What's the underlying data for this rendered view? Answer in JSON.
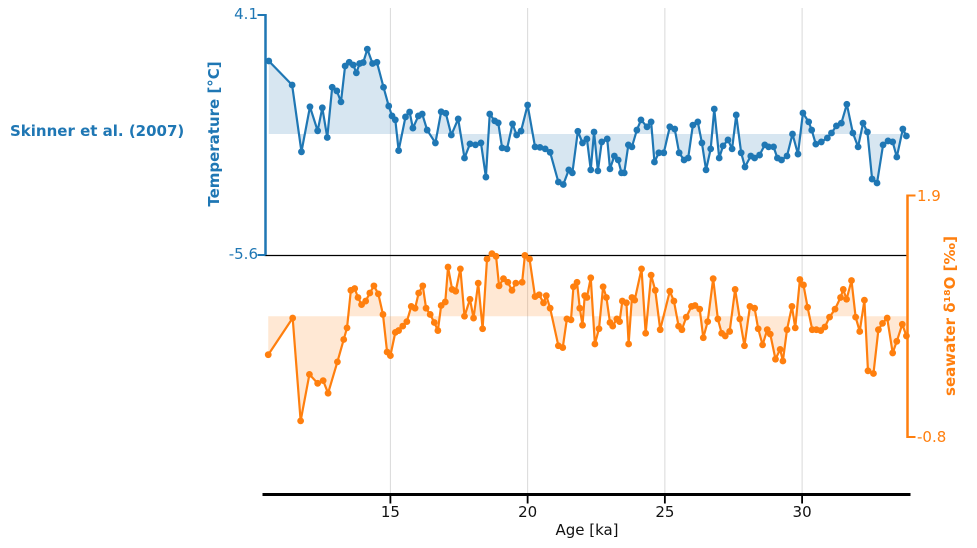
{
  "figure": {
    "annotation": "Skinner et al. (2007)",
    "background": "#ffffff",
    "grid_color": "#d9d9d9",
    "axis_color": "#000000"
  },
  "chart_data": {
    "type": "line",
    "title": "",
    "legend": "none",
    "grid": "vertical-only",
    "x": {
      "label": "Age [ka]",
      "min": 10.45,
      "max": 33.84,
      "ticks": [
        "15",
        "20",
        "25",
        "30"
      ],
      "tick_values": [
        15,
        20,
        25,
        30
      ]
    },
    "series": [
      {
        "name": "temperature",
        "label": "Temperature [°C]",
        "axis_side": "left",
        "color": "#1f77b4",
        "fill_color": "rgba(31,119,180,0.18)",
        "ymax": 4.1,
        "ymin": -5.6,
        "ymax_label": "4.1",
        "ymin_label": "-5.6",
        "fill_baseline": -0.71,
        "marker": "circle",
        "points": [
          [
            10.57,
            2.24
          ],
          [
            11.42,
            1.27
          ],
          [
            11.76,
            -1.43
          ],
          [
            12.07,
            0.39
          ],
          [
            12.35,
            -0.58
          ],
          [
            12.52,
            0.35
          ],
          [
            12.7,
            -0.85
          ],
          [
            12.88,
            1.18
          ],
          [
            13.05,
            1.03
          ],
          [
            13.2,
            0.59
          ],
          [
            13.35,
            2.04
          ],
          [
            13.5,
            2.19
          ],
          [
            13.65,
            2.08
          ],
          [
            13.76,
            1.76
          ],
          [
            13.88,
            2.14
          ],
          [
            14.01,
            2.18
          ],
          [
            14.16,
            2.72
          ],
          [
            14.35,
            2.14
          ],
          [
            14.51,
            2.19
          ],
          [
            14.75,
            1.18
          ],
          [
            14.94,
            0.42
          ],
          [
            15.06,
            0.02
          ],
          [
            15.18,
            -0.14
          ],
          [
            15.3,
            -1.38
          ],
          [
            15.55,
            -0.02
          ],
          [
            15.7,
            0.18
          ],
          [
            15.82,
            -0.47
          ],
          [
            16.02,
            0.02
          ],
          [
            16.16,
            0.1
          ],
          [
            16.34,
            -0.55
          ],
          [
            16.64,
            -1.07
          ],
          [
            16.85,
            0.19
          ],
          [
            17.02,
            0.13
          ],
          [
            17.22,
            -0.75
          ],
          [
            17.47,
            -0.1
          ],
          [
            17.7,
            -1.68
          ],
          [
            17.9,
            -1.11
          ],
          [
            18.1,
            -1.15
          ],
          [
            18.3,
            -1.07
          ],
          [
            18.48,
            -2.45
          ],
          [
            18.62,
            0.1
          ],
          [
            18.8,
            -0.18
          ],
          [
            18.93,
            -0.26
          ],
          [
            19.07,
            -1.27
          ],
          [
            19.25,
            -1.31
          ],
          [
            19.45,
            -0.3
          ],
          [
            19.6,
            -0.75
          ],
          [
            19.76,
            -0.59
          ],
          [
            20.0,
            0.46
          ],
          [
            20.27,
            -1.23
          ],
          [
            20.45,
            -1.25
          ],
          [
            20.64,
            -1.31
          ],
          [
            20.82,
            -1.45
          ],
          [
            21.12,
            -2.65
          ],
          [
            21.3,
            -2.75
          ],
          [
            21.5,
            -2.16
          ],
          [
            21.63,
            -2.28
          ],
          [
            21.83,
            -0.6
          ],
          [
            22.0,
            -1.07
          ],
          [
            22.16,
            -0.91
          ],
          [
            22.3,
            -2.16
          ],
          [
            22.42,
            -0.63
          ],
          [
            22.56,
            -2.2
          ],
          [
            22.7,
            -1.03
          ],
          [
            22.9,
            -0.91
          ],
          [
            23.0,
            -2.12
          ],
          [
            23.16,
            -1.6
          ],
          [
            23.3,
            -1.76
          ],
          [
            23.42,
            -2.28
          ],
          [
            23.52,
            -2.28
          ],
          [
            23.67,
            -1.15
          ],
          [
            23.8,
            -1.23
          ],
          [
            23.98,
            -0.55
          ],
          [
            24.13,
            -0.14
          ],
          [
            24.35,
            -0.42
          ],
          [
            24.5,
            -0.22
          ],
          [
            24.62,
            -1.84
          ],
          [
            24.78,
            -1.47
          ],
          [
            24.96,
            -1.47
          ],
          [
            25.18,
            -0.42
          ],
          [
            25.36,
            -0.51
          ],
          [
            25.52,
            -1.47
          ],
          [
            25.7,
            -1.76
          ],
          [
            25.85,
            -1.68
          ],
          [
            26.02,
            -0.35
          ],
          [
            26.2,
            -0.22
          ],
          [
            26.35,
            -1.07
          ],
          [
            26.5,
            -2.16
          ],
          [
            26.67,
            -1.31
          ],
          [
            26.8,
            0.3
          ],
          [
            26.98,
            -1.68
          ],
          [
            27.12,
            -1.19
          ],
          [
            27.3,
            -0.95
          ],
          [
            27.45,
            -1.31
          ],
          [
            27.6,
            0.06
          ],
          [
            27.78,
            -1.47
          ],
          [
            27.92,
            -2.04
          ],
          [
            28.13,
            -1.6
          ],
          [
            28.27,
            -1.68
          ],
          [
            28.45,
            -1.56
          ],
          [
            28.64,
            -1.15
          ],
          [
            28.78,
            -1.23
          ],
          [
            28.96,
            -1.23
          ],
          [
            29.1,
            -1.68
          ],
          [
            29.25,
            -1.76
          ],
          [
            29.45,
            -1.6
          ],
          [
            29.65,
            -0.71
          ],
          [
            29.85,
            -1.52
          ],
          [
            30.03,
            0.14
          ],
          [
            30.24,
            -0.22
          ],
          [
            30.35,
            -0.55
          ],
          [
            30.5,
            -1.12
          ],
          [
            30.7,
            -1.03
          ],
          [
            30.92,
            -0.87
          ],
          [
            31.07,
            -0.67
          ],
          [
            31.25,
            -0.38
          ],
          [
            31.43,
            -0.27
          ],
          [
            31.63,
            0.49
          ],
          [
            31.85,
            -0.67
          ],
          [
            32.04,
            -1.23
          ],
          [
            32.22,
            -0.27
          ],
          [
            32.38,
            -0.63
          ],
          [
            32.55,
            -2.53
          ],
          [
            32.73,
            -2.69
          ],
          [
            32.95,
            -1.15
          ],
          [
            33.13,
            -0.99
          ],
          [
            33.3,
            -1.03
          ],
          [
            33.45,
            -1.64
          ],
          [
            33.67,
            -0.51
          ],
          [
            33.8,
            -0.79
          ]
        ]
      },
      {
        "name": "seawater-d18o",
        "label": "seawater δ¹⁸O [‰]",
        "axis_side": "right",
        "color": "#ff7f0e",
        "fill_color": "rgba(255,127,14,0.18)",
        "ymax": 1.9,
        "ymin": -0.8,
        "ymax_label": "1.9",
        "ymin_label": "-0.8",
        "fill_baseline": 0.55,
        "marker": "circle",
        "points": [
          [
            10.55,
            0.12
          ],
          [
            11.44,
            0.53
          ],
          [
            11.73,
            -0.62
          ],
          [
            12.05,
            -0.1
          ],
          [
            12.35,
            -0.2
          ],
          [
            12.55,
            -0.17
          ],
          [
            12.73,
            -0.31
          ],
          [
            13.07,
            0.04
          ],
          [
            13.3,
            0.29
          ],
          [
            13.42,
            0.42
          ],
          [
            13.56,
            0.84
          ],
          [
            13.7,
            0.86
          ],
          [
            13.82,
            0.76
          ],
          [
            13.95,
            0.68
          ],
          [
            14.1,
            0.72
          ],
          [
            14.25,
            0.81
          ],
          [
            14.4,
            0.89
          ],
          [
            14.56,
            0.8
          ],
          [
            14.73,
            0.57
          ],
          [
            14.88,
            0.15
          ],
          [
            15.0,
            0.11
          ],
          [
            15.18,
            0.37
          ],
          [
            15.3,
            0.39
          ],
          [
            15.45,
            0.44
          ],
          [
            15.6,
            0.49
          ],
          [
            15.76,
            0.66
          ],
          [
            15.9,
            0.64
          ],
          [
            16.03,
            0.81
          ],
          [
            16.18,
            0.89
          ],
          [
            16.3,
            0.64
          ],
          [
            16.45,
            0.57
          ],
          [
            16.6,
            0.48
          ],
          [
            16.73,
            0.39
          ],
          [
            16.85,
            0.67
          ],
          [
            17.0,
            0.71
          ],
          [
            17.1,
            1.1
          ],
          [
            17.25,
            0.85
          ],
          [
            17.38,
            0.83
          ],
          [
            17.55,
            1.08
          ],
          [
            17.7,
            0.55
          ],
          [
            17.9,
            0.74
          ],
          [
            18.03,
            0.53
          ],
          [
            18.2,
            0.92
          ],
          [
            18.36,
            0.41
          ],
          [
            18.52,
            1.19
          ],
          [
            18.7,
            1.25
          ],
          [
            18.85,
            1.22
          ],
          [
            18.96,
            0.89
          ],
          [
            19.12,
            0.97
          ],
          [
            19.28,
            0.93
          ],
          [
            19.43,
            0.84
          ],
          [
            19.57,
            0.92
          ],
          [
            19.8,
            0.93
          ],
          [
            19.9,
            1.23
          ],
          [
            20.07,
            1.19
          ],
          [
            20.27,
            0.77
          ],
          [
            20.42,
            0.79
          ],
          [
            20.58,
            0.7
          ],
          [
            20.68,
            0.78
          ],
          [
            20.82,
            0.64
          ],
          [
            21.12,
            0.22
          ],
          [
            21.28,
            0.2
          ],
          [
            21.43,
            0.52
          ],
          [
            21.58,
            0.51
          ],
          [
            21.67,
            0.88
          ],
          [
            21.8,
            0.93
          ],
          [
            21.9,
            0.64
          ],
          [
            22.0,
            0.45
          ],
          [
            22.08,
            0.78
          ],
          [
            22.16,
            0.76
          ],
          [
            22.3,
            0.98
          ],
          [
            22.45,
            0.24
          ],
          [
            22.6,
            0.41
          ],
          [
            22.75,
            0.88
          ],
          [
            22.87,
            0.76
          ],
          [
            23.0,
            0.48
          ],
          [
            23.1,
            0.44
          ],
          [
            23.25,
            0.52
          ],
          [
            23.35,
            0.49
          ],
          [
            23.45,
            0.72
          ],
          [
            23.6,
            0.7
          ],
          [
            23.68,
            0.24
          ],
          [
            23.8,
            0.76
          ],
          [
            23.9,
            0.73
          ],
          [
            24.15,
            1.08
          ],
          [
            24.3,
            0.36
          ],
          [
            24.5,
            1.01
          ],
          [
            24.65,
            0.84
          ],
          [
            24.83,
            0.4
          ],
          [
            25.18,
            0.83
          ],
          [
            25.33,
            0.72
          ],
          [
            25.5,
            0.44
          ],
          [
            25.62,
            0.4
          ],
          [
            25.78,
            0.54
          ],
          [
            25.97,
            0.66
          ],
          [
            26.1,
            0.67
          ],
          [
            26.27,
            0.63
          ],
          [
            26.4,
            0.31
          ],
          [
            26.56,
            0.49
          ],
          [
            26.76,
            0.97
          ],
          [
            26.93,
            0.52
          ],
          [
            27.07,
            0.36
          ],
          [
            27.2,
            0.33
          ],
          [
            27.36,
            0.38
          ],
          [
            27.56,
            0.85
          ],
          [
            27.73,
            0.52
          ],
          [
            27.9,
            0.22
          ],
          [
            28.1,
            0.66
          ],
          [
            28.27,
            0.64
          ],
          [
            28.4,
            0.41
          ],
          [
            28.56,
            0.23
          ],
          [
            28.73,
            0.4
          ],
          [
            28.84,
            0.35
          ],
          [
            29.03,
            0.07
          ],
          [
            29.2,
            0.18
          ],
          [
            29.3,
            0.05
          ],
          [
            29.45,
            0.4
          ],
          [
            29.63,
            0.66
          ],
          [
            29.75,
            0.42
          ],
          [
            29.92,
            0.96
          ],
          [
            30.05,
            0.9
          ],
          [
            30.2,
            0.65
          ],
          [
            30.37,
            0.4
          ],
          [
            30.52,
            0.4
          ],
          [
            30.68,
            0.39
          ],
          [
            30.83,
            0.43
          ],
          [
            31.0,
            0.54
          ],
          [
            31.2,
            0.63
          ],
          [
            31.4,
            0.76
          ],
          [
            31.5,
            0.85
          ],
          [
            31.62,
            0.74
          ],
          [
            31.8,
            0.95
          ],
          [
            31.95,
            0.54
          ],
          [
            32.1,
            0.38
          ],
          [
            32.27,
            0.73
          ],
          [
            32.4,
            -0.06
          ],
          [
            32.6,
            -0.09
          ],
          [
            32.78,
            0.4
          ],
          [
            32.93,
            0.47
          ],
          [
            33.1,
            0.53
          ],
          [
            33.3,
            0.14
          ],
          [
            33.45,
            0.27
          ],
          [
            33.65,
            0.46
          ],
          [
            33.8,
            0.33
          ]
        ]
      }
    ]
  }
}
